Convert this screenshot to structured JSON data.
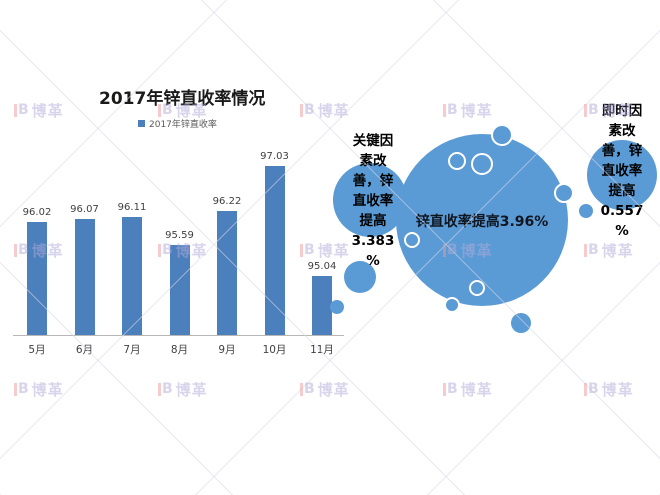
{
  "title": "2017年锌直收率情况",
  "legend": {
    "label": "2017年锌直收率"
  },
  "chart_data": {
    "type": "bar",
    "title": "2017年锌直收率情况",
    "series_name": "2017年锌直收率",
    "categories": [
      "5月",
      "6月",
      "7月",
      "8月",
      "9月",
      "10月",
      "11月"
    ],
    "values": [
      96.02,
      96.07,
      96.11,
      95.59,
      96.22,
      97.03,
      95.04
    ],
    "xlabel": "",
    "ylabel": "",
    "ylim": [
      94,
      97.5
    ],
    "grid": false,
    "legend_position": "top",
    "bar_color": "#4b80bd",
    "value_labels_shown": true
  },
  "annotations": {
    "left_bubble": {
      "text": "关键因素改善，锌直收率提高3.383%",
      "lines": [
        "关键因",
        "素改",
        "善，锌",
        "直收率",
        "提高",
        "3.383",
        "%"
      ]
    },
    "main_bubble": {
      "text": "锌直收率提高3.96%"
    },
    "right_bubble": {
      "text": "即时因素改善，锌直收率提高0.557%",
      "lines": [
        "即时因",
        "素改",
        "善，锌",
        "直收率",
        "提高",
        "0.557",
        "%"
      ]
    }
  },
  "watermark": {
    "logo_b": "B",
    "logo_text": "博革"
  },
  "colors": {
    "bar": "#4b80bd",
    "bubble": "#5b9bd5",
    "axis_line": "#b7b7b7",
    "title_text": "#1a1a1a",
    "legend_text": "#595959",
    "value_text": "#3f3f3f",
    "annotation_text": "#000000",
    "watermark_purple": "#b3abd9",
    "watermark_red": "#f19898"
  }
}
